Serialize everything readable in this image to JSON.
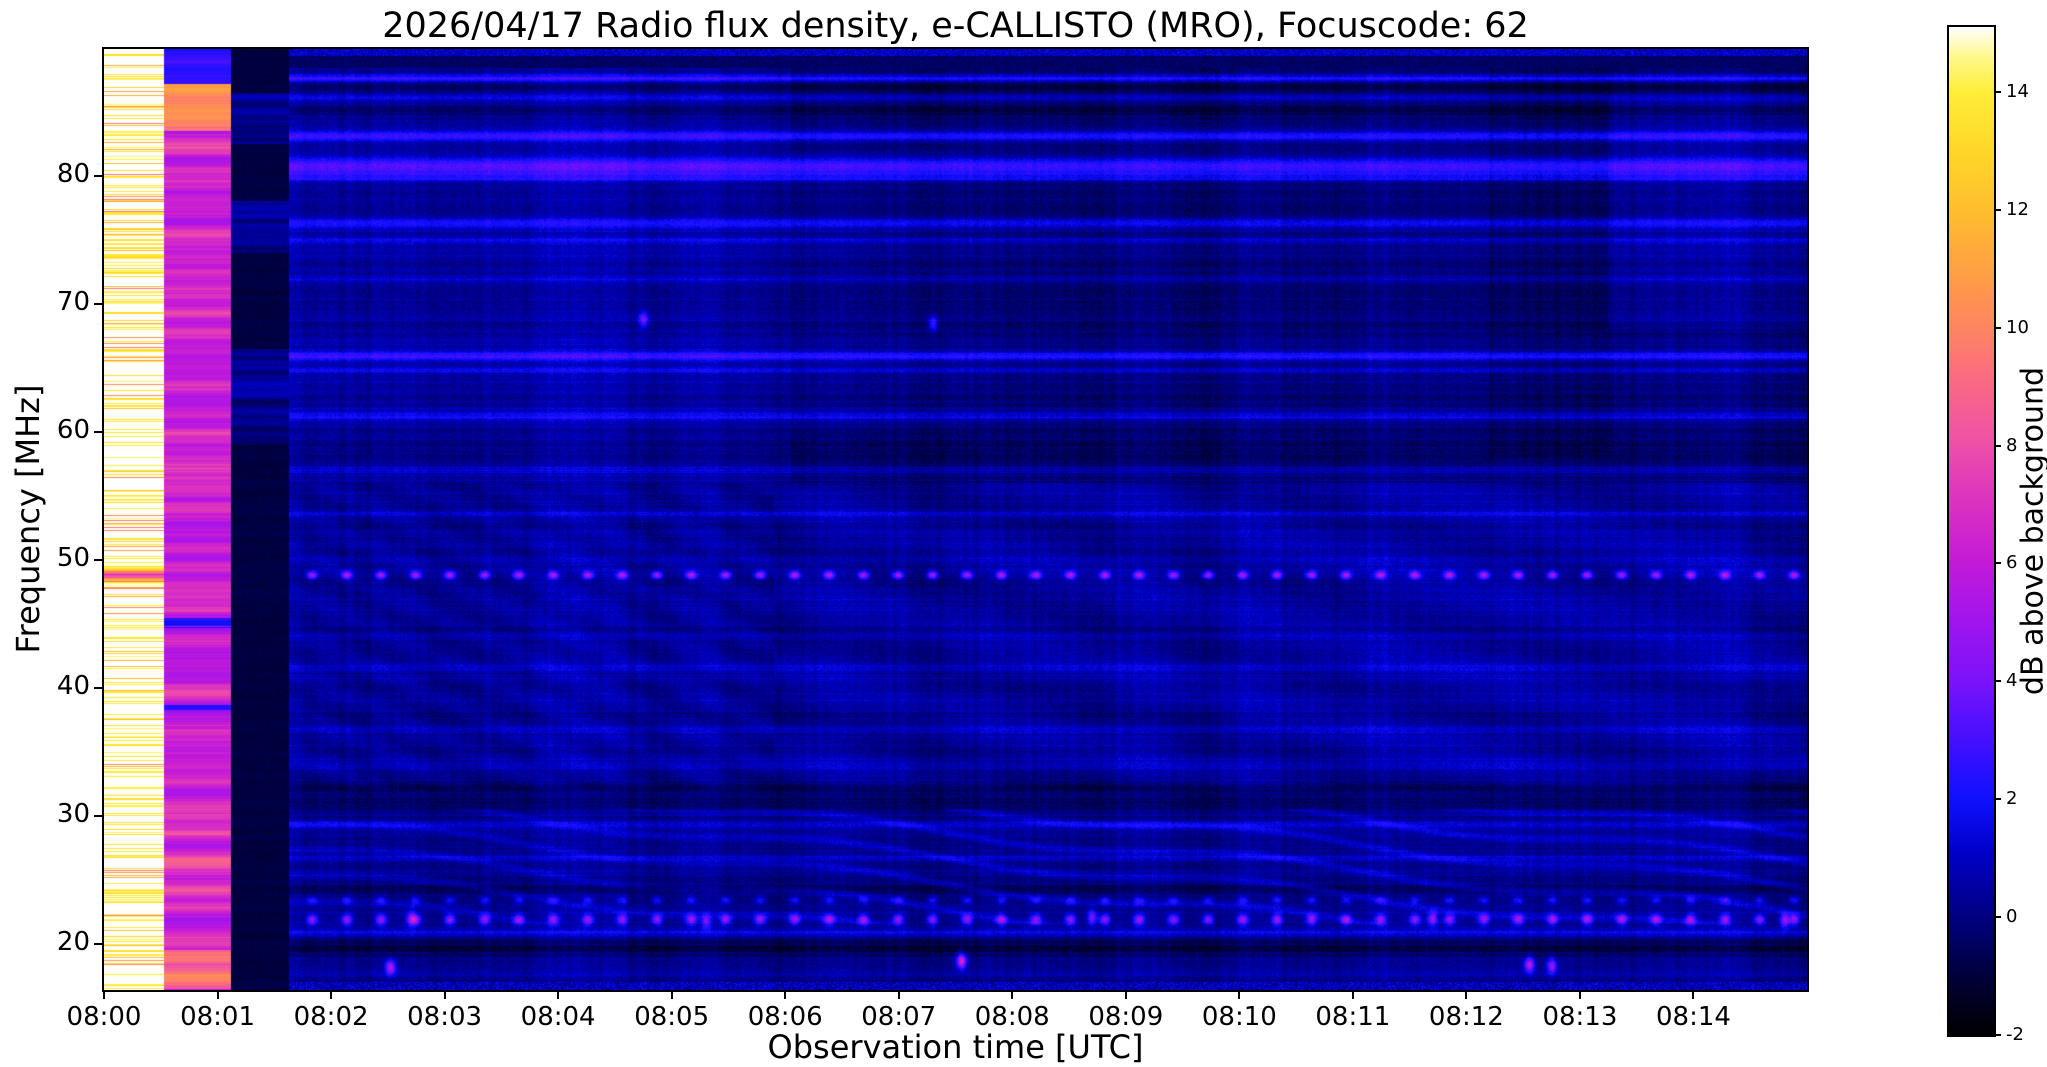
{
  "chart_data": {
    "type": "heatmap",
    "title": "2026/04/17  Radio flux density, e-CALLISTO (MRO), Focuscode: 62",
    "xlabel": "Observation time [UTC]",
    "ylabel": "Frequency [MHz]",
    "x_range_minutes": [
      0,
      15
    ],
    "x_ticks": [
      {
        "minute": 0,
        "label": "08:00"
      },
      {
        "minute": 1,
        "label": "08:01"
      },
      {
        "minute": 2,
        "label": "08:02"
      },
      {
        "minute": 3,
        "label": "08:03"
      },
      {
        "minute": 4,
        "label": "08:04"
      },
      {
        "minute": 5,
        "label": "08:05"
      },
      {
        "minute": 6,
        "label": "08:06"
      },
      {
        "minute": 7,
        "label": "08:07"
      },
      {
        "minute": 8,
        "label": "08:08"
      },
      {
        "minute": 9,
        "label": "08:09"
      },
      {
        "minute": 10,
        "label": "08:10"
      },
      {
        "minute": 11,
        "label": "08:11"
      },
      {
        "minute": 12,
        "label": "08:12"
      },
      {
        "minute": 13,
        "label": "08:13"
      },
      {
        "minute": 14,
        "label": "08:14"
      }
    ],
    "freq_range_mhz": [
      16.4,
      89.9
    ],
    "y_ticks_mhz": [
      20,
      30,
      40,
      50,
      60,
      70,
      80
    ],
    "colorbar": {
      "label": "dB above background",
      "ticks": [
        -2,
        0,
        2,
        4,
        6,
        8,
        10,
        12,
        14
      ],
      "range_db": [
        -2,
        15.1
      ]
    },
    "render": {
      "seed": 42,
      "background_db": 0.3,
      "colormap_stops": [
        [
          0.0,
          "#000000"
        ],
        [
          0.06,
          "#00003c"
        ],
        [
          0.117,
          "#000080"
        ],
        [
          0.18,
          "#0000c8"
        ],
        [
          0.234,
          "#1010ff"
        ],
        [
          0.3,
          "#4a10ff"
        ],
        [
          0.351,
          "#7b12fa"
        ],
        [
          0.41,
          "#a014ee"
        ],
        [
          0.468,
          "#c31ad8"
        ],
        [
          0.53,
          "#dc32c0"
        ],
        [
          0.585,
          "#ee4fa8"
        ],
        [
          0.65,
          "#fa6a82"
        ],
        [
          0.702,
          "#ff8560"
        ],
        [
          0.76,
          "#ffa142"
        ],
        [
          0.819,
          "#ffbe2e"
        ],
        [
          0.88,
          "#ffd827"
        ],
        [
          0.936,
          "#ffee3a"
        ],
        [
          0.97,
          "#fff88c"
        ],
        [
          1.0,
          "#ffffff"
        ]
      ],
      "columns": {
        "white_end_min": 0.53,
        "pink_end_min": 1.12,
        "black_end_min": 1.63,
        "white_level_db": 15.25,
        "pink_level_db": 6.3,
        "black_level_db": -1.4
      },
      "h_lines_solid": [
        {
          "f": 87.6,
          "b": 2.4,
          "s": 0.22
        },
        {
          "f": 86.1,
          "b": 1.3,
          "s": 0.2
        },
        {
          "f": 83.1,
          "b": 2.2,
          "s": 0.3
        },
        {
          "f": 80.7,
          "b": 3.0,
          "s": 0.5
        },
        {
          "f": 79.8,
          "b": 1.4,
          "s": 0.2
        },
        {
          "f": 76.3,
          "b": 1.7,
          "s": 0.3
        },
        {
          "f": 74.9,
          "b": 1.1,
          "s": 0.2
        },
        {
          "f": 72.0,
          "b": 0.8,
          "s": 0.2
        },
        {
          "f": 65.9,
          "b": 2.2,
          "s": 0.25
        },
        {
          "f": 64.8,
          "b": 1.0,
          "s": 0.2
        },
        {
          "f": 61.2,
          "b": 1.5,
          "s": 0.25
        },
        {
          "f": 57.0,
          "b": 0.8,
          "s": 0.2
        },
        {
          "f": 53.6,
          "b": 0.7,
          "s": 0.2
        },
        {
          "f": 44.1,
          "b": 0.6,
          "s": 0.2
        },
        {
          "f": 41.5,
          "b": 0.7,
          "s": 0.2
        },
        {
          "f": 36.8,
          "b": 0.8,
          "s": 0.2
        },
        {
          "f": 33.9,
          "b": 0.6,
          "s": 0.2
        },
        {
          "f": 29.3,
          "b": 1.2,
          "s": 0.25
        },
        {
          "f": 26.7,
          "b": 0.8,
          "s": 0.2
        },
        {
          "f": 20.8,
          "b": 1.0,
          "s": 0.25
        }
      ],
      "h_lines_dotted": [
        {
          "f": 48.8,
          "b": 2.6,
          "s": 0.22
        },
        {
          "f": 21.9,
          "b": 2.3,
          "s": 0.3
        },
        {
          "f": 23.4,
          "b": 1.1,
          "s": 0.22
        }
      ],
      "h_lines_dark": [
        {
          "f": 19.6,
          "d": 1.2,
          "s": 0.5
        },
        {
          "f": 24.4,
          "d": 0.7,
          "s": 0.3
        },
        {
          "f": 31.5,
          "d": 0.5,
          "s": 0.9
        },
        {
          "f": 87.0,
          "d": 0.7,
          "s": 0.35
        },
        {
          "f": 85.0,
          "d": 0.6,
          "s": 0.5
        },
        {
          "f": 58.5,
          "d": 0.4,
          "s": 0.8
        }
      ],
      "ripple_band_mhz": [
        21.5,
        30.5
      ],
      "wave_band_mhz": [
        32,
        56
      ],
      "step_time_min": 6.05,
      "dots": [
        {
          "t": 2.52,
          "f": 18.2,
          "v": 5.5
        },
        {
          "t": 7.55,
          "f": 18.7,
          "v": 6.5
        },
        {
          "t": 12.55,
          "f": 18.4,
          "v": 5.5
        },
        {
          "t": 12.75,
          "f": 18.3,
          "v": 4.5
        },
        {
          "t": 8.7,
          "f": 22.1,
          "v": 4.0
        },
        {
          "t": 11.7,
          "f": 22.0,
          "v": 4.5
        },
        {
          "t": 14.8,
          "f": 21.9,
          "v": 4.5
        },
        {
          "t": 2.7,
          "f": 22.0,
          "v": 3.5
        },
        {
          "t": 5.3,
          "f": 21.8,
          "v": 3.5
        },
        {
          "t": 7.3,
          "f": 68.5,
          "v": 3.0
        },
        {
          "t": 4.75,
          "f": 68.8,
          "v": 3.5
        }
      ]
    }
  }
}
